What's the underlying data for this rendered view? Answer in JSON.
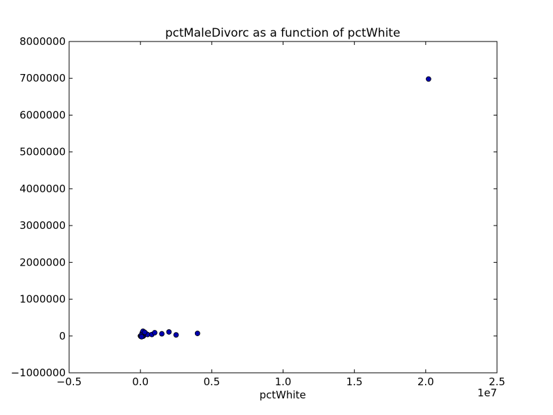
{
  "chart_data": {
    "type": "scatter",
    "title": "pctMaleDivorc as a function of pctWhite",
    "xlabel": "pctWhite",
    "ylabel": "",
    "x_offset_label": "1e7",
    "xlim": [
      -0.5,
      2.5
    ],
    "ylim": [
      -1000000,
      8000000
    ],
    "x_ticks": [
      -0.5,
      0.0,
      0.5,
      1.0,
      1.5,
      2.0,
      2.5
    ],
    "x_tick_labels": [
      "−0.5",
      "0.0",
      "0.5",
      "1.0",
      "1.5",
      "2.0",
      "2.5"
    ],
    "y_ticks": [
      -1000000,
      0,
      1000000,
      2000000,
      3000000,
      4000000,
      5000000,
      6000000,
      7000000,
      8000000
    ],
    "y_tick_labels": [
      "−1000000",
      "0",
      "1000000",
      "2000000",
      "3000000",
      "4000000",
      "5000000",
      "6000000",
      "7000000",
      "8000000"
    ],
    "grid": false,
    "marker_color": "#0000b0",
    "marker_edge_color": "#000000",
    "series": [
      {
        "x": [
          0.0,
          0.003,
          0.006,
          0.01,
          0.014,
          0.02,
          0.025,
          0.04,
          0.05,
          0.012,
          0.018,
          0.03,
          0.08,
          0.1,
          0.15,
          0.2,
          0.25,
          0.4,
          0.005,
          0.008,
          2.02
        ],
        "y": [
          0,
          -10000,
          5000,
          20000,
          10000,
          -5000,
          30000,
          60000,
          40000,
          80000,
          130000,
          100000,
          40000,
          90000,
          60000,
          110000,
          30000,
          70000,
          15000,
          -20000,
          6980000
        ]
      }
    ]
  }
}
